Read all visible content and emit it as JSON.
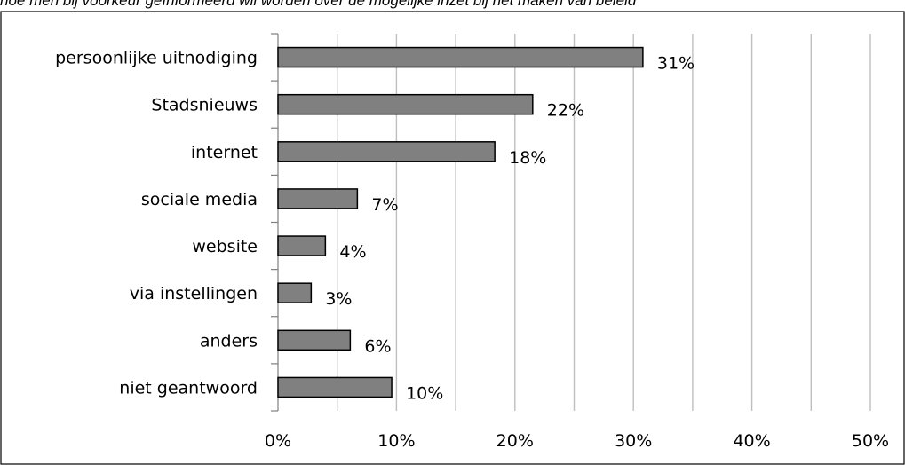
{
  "header": {
    "caption": "hoe men bij voorkeur geïnformeerd wil worden over de mogelijke inzet bij het maken van beleid"
  },
  "chart_data": {
    "type": "bar",
    "orientation": "horizontal",
    "categories": [
      "persoonlijke uitnodiging",
      "Stadsnieuws",
      "internet",
      "sociale media",
      "website",
      "via instellingen",
      "anders",
      "niet geantwoord"
    ],
    "values": [
      30.8,
      21.5,
      18.3,
      6.7,
      4.0,
      2.8,
      6.1,
      9.6
    ],
    "value_labels": [
      "31%",
      "22%",
      "18%",
      "7%",
      "4%",
      "3%",
      "6%",
      "10%"
    ],
    "x_ticks": [
      "0%",
      "10%",
      "20%",
      "30%",
      "40%",
      "50%"
    ],
    "xlim": [
      0,
      50
    ],
    "grid": true,
    "bar_color": "#808080",
    "bar_edge_color": "#000000",
    "grid_color": "#bfbfbf",
    "title": "",
    "xlabel": "",
    "ylabel": ""
  }
}
